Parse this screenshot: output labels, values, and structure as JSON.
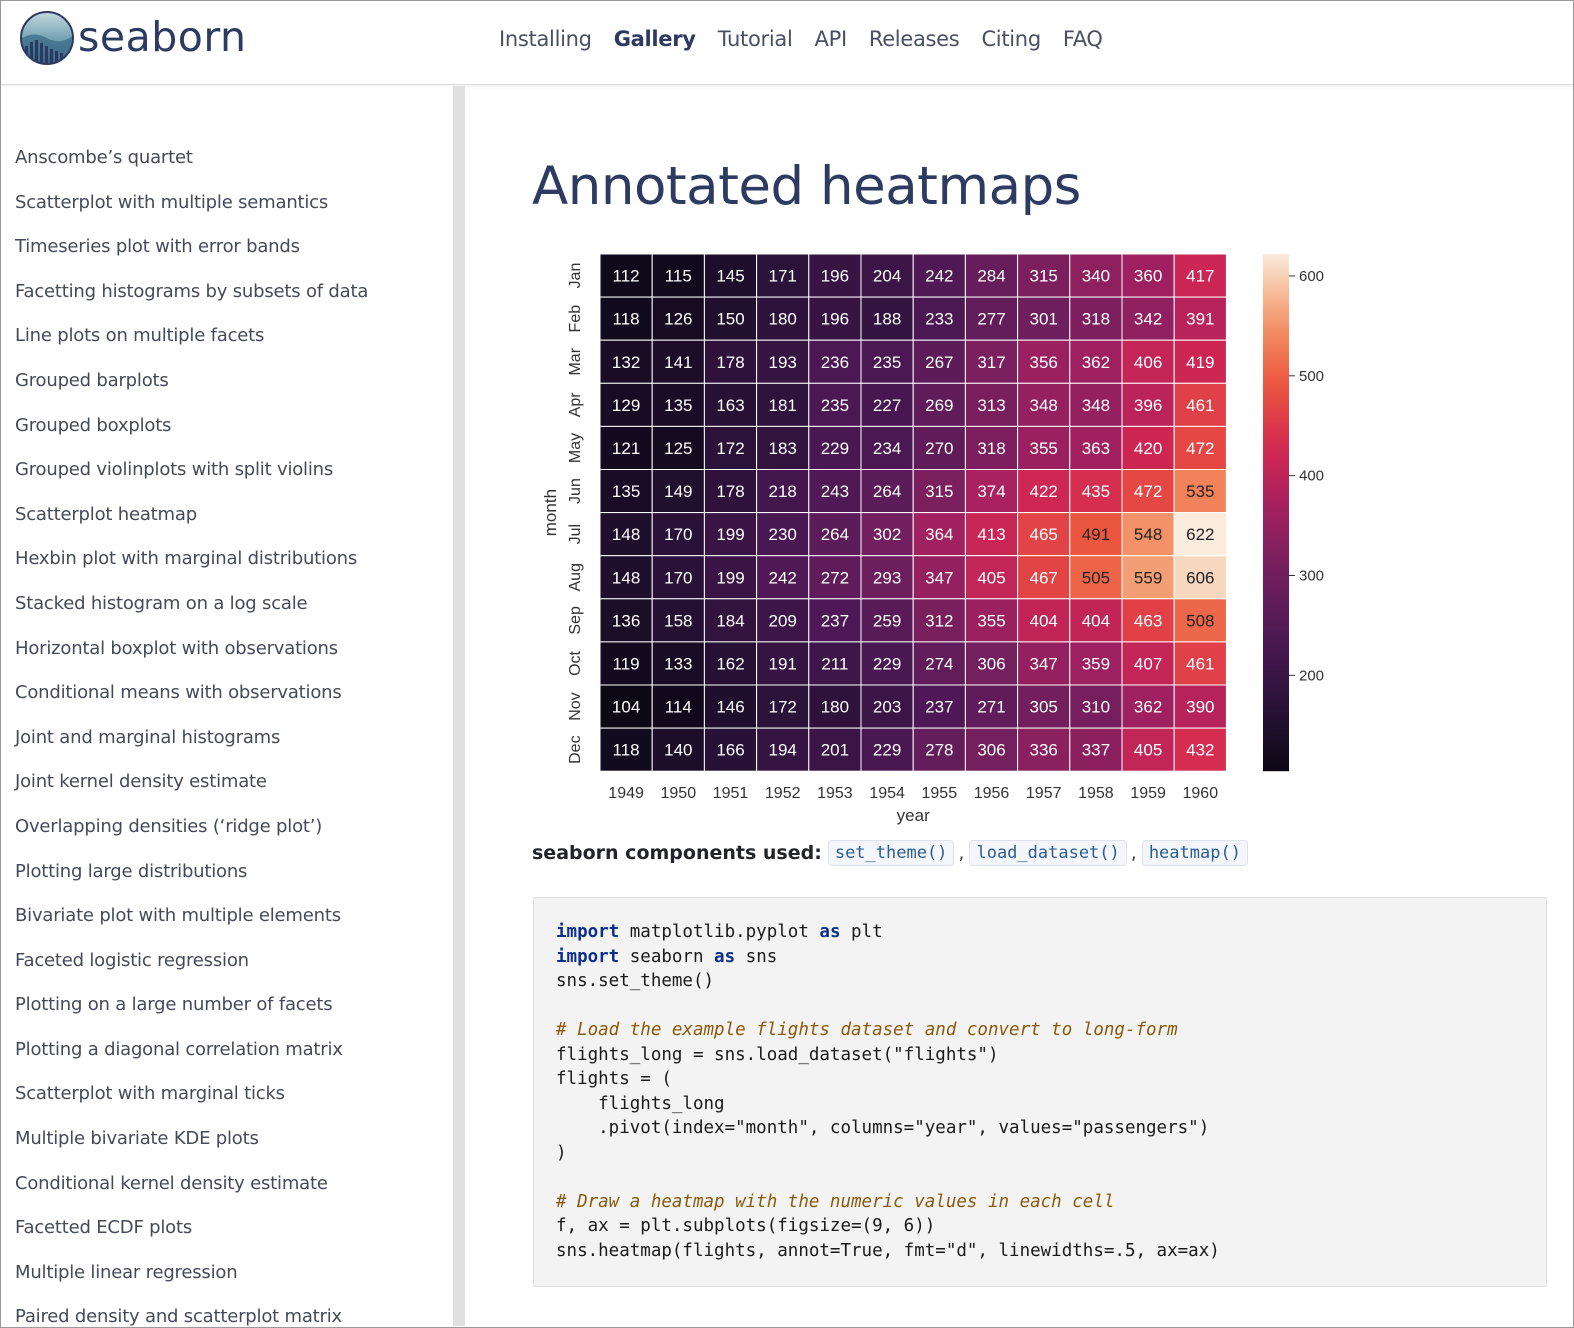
{
  "header": {
    "brand": "seaborn",
    "nav": [
      {
        "label": "Installing",
        "active": false
      },
      {
        "label": "Gallery",
        "active": true
      },
      {
        "label": "Tutorial",
        "active": false
      },
      {
        "label": "API",
        "active": false
      },
      {
        "label": "Releases",
        "active": false
      },
      {
        "label": "Citing",
        "active": false
      },
      {
        "label": "FAQ",
        "active": false
      }
    ]
  },
  "sidebar": {
    "items": [
      "Anscombe’s quartet",
      "Scatterplot with multiple semantics",
      "Timeseries plot with error bands",
      "Facetting histograms by subsets of data",
      "Line plots on multiple facets",
      "Grouped barplots",
      "Grouped boxplots",
      "Grouped violinplots with split violins",
      "Scatterplot heatmap",
      "Hexbin plot with marginal distributions",
      "Stacked histogram on a log scale",
      "Horizontal boxplot with observations",
      "Conditional means with observations",
      "Joint and marginal histograms",
      "Joint kernel density estimate",
      "Overlapping densities (‘ridge plot’)",
      "Plotting large distributions",
      "Bivariate plot with multiple elements",
      "Faceted logistic regression",
      "Plotting on a large number of facets",
      "Plotting a diagonal correlation matrix",
      "Scatterplot with marginal ticks",
      "Multiple bivariate KDE plots",
      "Conditional kernel density estimate",
      "Facetted ECDF plots",
      "Multiple linear regression",
      "Paired density and scatterplot matrix"
    ]
  },
  "main": {
    "title": "Annotated heatmaps",
    "components_label": "seaborn components used:",
    "components": [
      "set_theme()",
      "load_dataset()",
      "heatmap()"
    ],
    "code": {
      "line1_kw": "import",
      "line1_rest": " matplotlib.pyplot ",
      "line1_as": "as",
      "line1_tail": " plt",
      "line2_kw": "import",
      "line2_rest": " seaborn ",
      "line2_as": "as",
      "line2_tail": " sns",
      "line3": "sns.set_theme()",
      "comment1": "# Load the example flights dataset and convert to long-form",
      "line5": "flights_long = sns.load_dataset(\"flights\")",
      "line6": "flights = (",
      "line7": "    flights_long",
      "line8": "    .pivot(index=\"month\", columns=\"year\", values=\"passengers\")",
      "line9": ")",
      "comment2": "# Draw a heatmap with the numeric values in each cell",
      "line11": "f, ax = plt.subplots(figsize=(9, 6))",
      "line12": "sns.heatmap(flights, annot=True, fmt=\"d\", linewidths=.5, ax=ax)"
    }
  },
  "chart_data": {
    "type": "heatmap",
    "title": "",
    "xlabel": "year",
    "ylabel": "month",
    "x": [
      "1949",
      "1950",
      "1951",
      "1952",
      "1953",
      "1954",
      "1955",
      "1956",
      "1957",
      "1958",
      "1959",
      "1960"
    ],
    "y": [
      "Jan",
      "Feb",
      "Mar",
      "Apr",
      "May",
      "Jun",
      "Jul",
      "Aug",
      "Sep",
      "Oct",
      "Nov",
      "Dec"
    ],
    "values": [
      [
        112,
        115,
        145,
        171,
        196,
        204,
        242,
        284,
        315,
        340,
        360,
        417
      ],
      [
        118,
        126,
        150,
        180,
        196,
        188,
        233,
        277,
        301,
        318,
        342,
        391
      ],
      [
        132,
        141,
        178,
        193,
        236,
        235,
        267,
        317,
        356,
        362,
        406,
        419
      ],
      [
        129,
        135,
        163,
        181,
        235,
        227,
        269,
        313,
        348,
        348,
        396,
        461
      ],
      [
        121,
        125,
        172,
        183,
        229,
        234,
        270,
        318,
        355,
        363,
        420,
        472
      ],
      [
        135,
        149,
        178,
        218,
        243,
        264,
        315,
        374,
        422,
        435,
        472,
        535
      ],
      [
        148,
        170,
        199,
        230,
        264,
        302,
        364,
        413,
        465,
        491,
        548,
        622
      ],
      [
        148,
        170,
        199,
        242,
        272,
        293,
        347,
        405,
        467,
        505,
        559,
        606
      ],
      [
        136,
        158,
        184,
        209,
        237,
        259,
        312,
        355,
        404,
        404,
        463,
        508
      ],
      [
        119,
        133,
        162,
        191,
        211,
        229,
        274,
        306,
        347,
        359,
        407,
        461
      ],
      [
        104,
        114,
        146,
        172,
        180,
        203,
        237,
        271,
        305,
        310,
        362,
        390
      ],
      [
        118,
        140,
        166,
        194,
        201,
        229,
        278,
        306,
        336,
        337,
        405,
        432
      ]
    ],
    "colorbar": {
      "range": [
        104,
        622
      ],
      "ticks": [
        200,
        300,
        400,
        500,
        600
      ]
    },
    "colormap": "rocket",
    "grid": false
  }
}
